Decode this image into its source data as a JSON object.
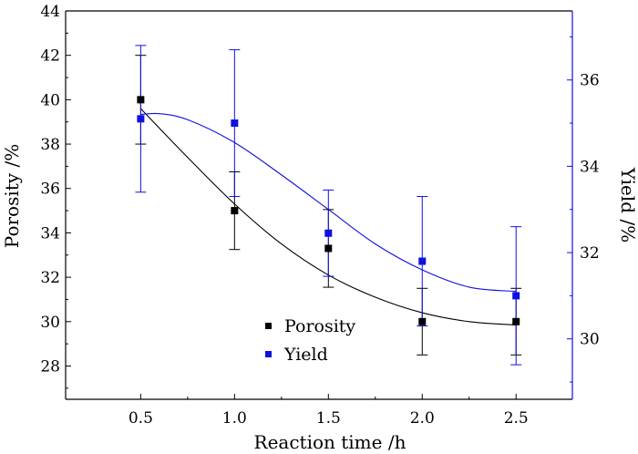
{
  "chart_data": {
    "type": "scatter",
    "xlabel": "Reaction time /h",
    "ylabel_left": "Porosity /%",
    "ylabel_right": "Yield /%",
    "xlim": [
      0.1,
      2.8
    ],
    "ylim_left": [
      26.5,
      44
    ],
    "ylim_right": [
      28.6,
      37.6
    ],
    "x_ticks": [
      0.5,
      1.0,
      1.5,
      2.0,
      2.5
    ],
    "x_tick_labels": [
      "0.5",
      "1.0",
      "1.5",
      "2.0",
      "2.5"
    ],
    "y_left_ticks": [
      28,
      30,
      32,
      34,
      36,
      38,
      40,
      42,
      44
    ],
    "y_right_ticks": [
      30,
      32,
      34,
      36
    ],
    "grid": false,
    "legend_position": "bottom-center",
    "series": [
      {
        "name": "Porosity",
        "axis": "left",
        "color": "#000000",
        "marker": "square",
        "x": [
          0.5,
          1.0,
          1.5,
          2.0,
          2.5
        ],
        "y": [
          40.0,
          35.0,
          33.3,
          30.0,
          30.0
        ],
        "error": [
          2.0,
          1.75,
          1.75,
          1.5,
          1.5
        ],
        "fit": [
          [
            0.5,
            39.6
          ],
          [
            0.75,
            37.4
          ],
          [
            1.0,
            35.3
          ],
          [
            1.25,
            33.5
          ],
          [
            1.5,
            32.1
          ],
          [
            1.75,
            31.1
          ],
          [
            2.0,
            30.4
          ],
          [
            2.25,
            30.0
          ],
          [
            2.5,
            29.85
          ]
        ]
      },
      {
        "name": "Yield",
        "axis": "right",
        "color": "#1010e0",
        "marker": "square",
        "x": [
          0.5,
          1.0,
          1.5,
          2.0,
          2.5
        ],
        "y": [
          35.1,
          35.0,
          32.45,
          31.8,
          31.0
        ],
        "error": [
          1.7,
          1.7,
          1.0,
          1.5,
          1.6
        ],
        "fit": [
          [
            0.5,
            35.2
          ],
          [
            0.6,
            35.22
          ],
          [
            0.75,
            35.08
          ],
          [
            1.0,
            34.55
          ],
          [
            1.25,
            33.8
          ],
          [
            1.5,
            33.0
          ],
          [
            1.75,
            32.2
          ],
          [
            2.0,
            31.6
          ],
          [
            2.25,
            31.2
          ],
          [
            2.5,
            31.1
          ]
        ]
      }
    ]
  }
}
